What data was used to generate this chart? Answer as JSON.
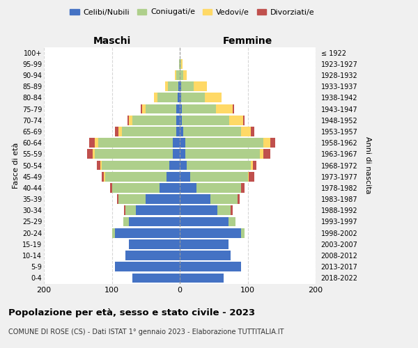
{
  "age_groups": [
    "0-4",
    "5-9",
    "10-14",
    "15-19",
    "20-24",
    "25-29",
    "30-34",
    "35-39",
    "40-44",
    "45-49",
    "50-54",
    "55-59",
    "60-64",
    "65-69",
    "70-74",
    "75-79",
    "80-84",
    "85-89",
    "90-94",
    "95-99",
    "100+"
  ],
  "birth_years": [
    "2018-2022",
    "2013-2017",
    "2008-2012",
    "2003-2007",
    "1998-2002",
    "1993-1997",
    "1988-1992",
    "1983-1987",
    "1978-1982",
    "1973-1977",
    "1968-1972",
    "1963-1967",
    "1958-1962",
    "1953-1957",
    "1948-1952",
    "1943-1947",
    "1938-1942",
    "1933-1937",
    "1928-1932",
    "1923-1927",
    "≤ 1922"
  ],
  "male": {
    "celibi": [
      70,
      95,
      80,
      75,
      95,
      75,
      65,
      50,
      30,
      20,
      15,
      10,
      10,
      5,
      5,
      5,
      3,
      2,
      0,
      0,
      0
    ],
    "coniugati": [
      0,
      0,
      0,
      0,
      5,
      8,
      15,
      40,
      70,
      90,
      100,
      115,
      110,
      80,
      65,
      45,
      30,
      15,
      5,
      1,
      0
    ],
    "vedovi": [
      0,
      0,
      0,
      0,
      0,
      0,
      0,
      0,
      0,
      2,
      2,
      3,
      5,
      5,
      5,
      5,
      5,
      5,
      2,
      0,
      0
    ],
    "divorziati": [
      0,
      0,
      0,
      0,
      0,
      0,
      2,
      2,
      3,
      3,
      5,
      8,
      8,
      5,
      2,
      2,
      0,
      0,
      0,
      0,
      0
    ]
  },
  "female": {
    "nubili": [
      65,
      90,
      75,
      72,
      90,
      72,
      55,
      45,
      25,
      15,
      10,
      8,
      8,
      5,
      3,
      3,
      2,
      2,
      0,
      0,
      0
    ],
    "coniugate": [
      0,
      0,
      0,
      0,
      5,
      10,
      20,
      40,
      65,
      85,
      95,
      110,
      115,
      85,
      70,
      50,
      35,
      18,
      5,
      2,
      0
    ],
    "vedove": [
      0,
      0,
      0,
      0,
      0,
      0,
      0,
      0,
      0,
      2,
      3,
      5,
      10,
      15,
      20,
      25,
      25,
      20,
      5,
      2,
      0
    ],
    "divorziate": [
      0,
      0,
      0,
      0,
      0,
      0,
      3,
      3,
      5,
      8,
      5,
      10,
      8,
      5,
      2,
      2,
      0,
      0,
      0,
      0,
      0
    ]
  },
  "colors": {
    "celibi": "#4472C4",
    "coniugati": "#AECF8B",
    "vedovi": "#FFD966",
    "divorziati": "#C0504D"
  },
  "xlim": [
    -200,
    200
  ],
  "xticks": [
    -200,
    -100,
    0,
    100,
    200
  ],
  "xticklabels": [
    "200",
    "100",
    "0",
    "100",
    "200"
  ],
  "title": "Popolazione per età, sesso e stato civile - 2023",
  "subtitle": "COMUNE DI ROSE (CS) - Dati ISTAT 1° gennaio 2023 - Elaborazione TUTTITALIA.IT",
  "ylabel": "Fasce di età",
  "ylabel2": "Anni di nascita",
  "legend_labels": [
    "Celibi/Nubili",
    "Coniugati/e",
    "Vedovi/e",
    "Divorziati/e"
  ],
  "maschi_label": "Maschi",
  "femmine_label": "Femmine",
  "bg_color": "#f0f0f0",
  "plot_bg_color": "#ffffff"
}
